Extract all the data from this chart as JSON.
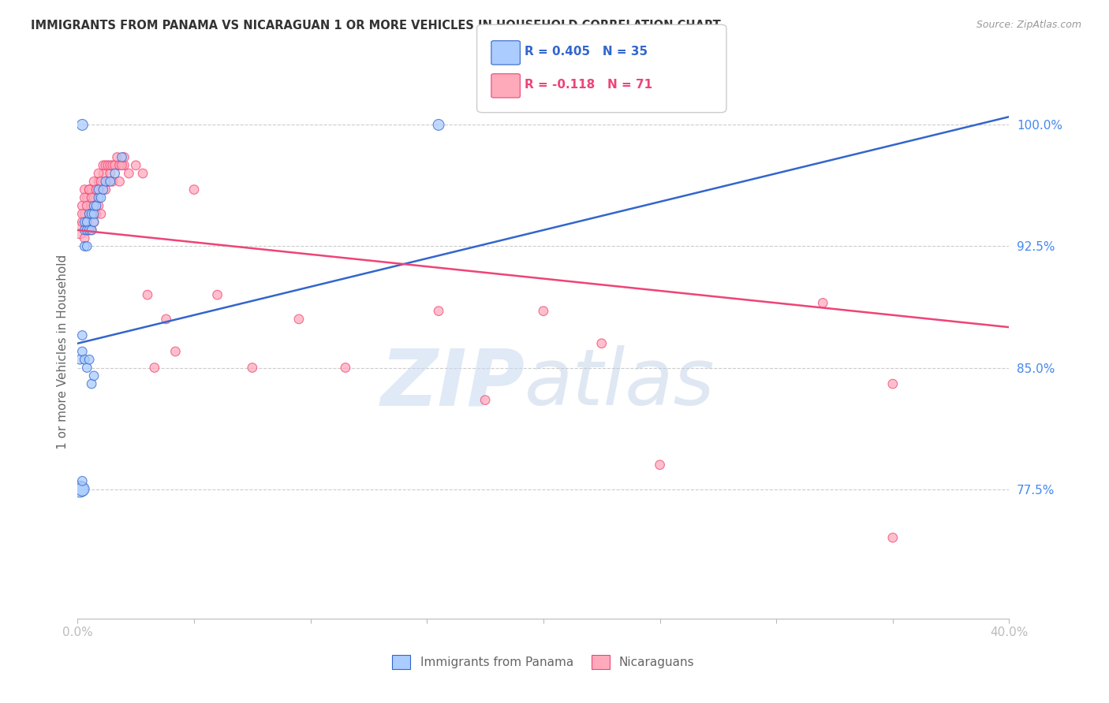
{
  "title": "IMMIGRANTS FROM PANAMA VS NICARAGUAN 1 OR MORE VEHICLES IN HOUSEHOLD CORRELATION CHART",
  "source": "Source: ZipAtlas.com",
  "ylabel": "1 or more Vehicles in Household",
  "xlim": [
    0.0,
    0.4
  ],
  "ylim": [
    0.695,
    1.025
  ],
  "y_ticks_right": [
    0.775,
    0.85,
    0.925,
    1.0
  ],
  "y_tick_labels_right": [
    "77.5%",
    "85.0%",
    "92.5%",
    "100.0%"
  ],
  "blue_color": "#aaccff",
  "pink_color": "#ffaabb",
  "trend_blue": "#3366cc",
  "trend_pink": "#ee4477",
  "watermark": "ZIPatlas",
  "watermark_blue": "#dce8f8",
  "watermark_gray": "#b0c8e8",
  "blue_label": "Immigrants from Panama",
  "pink_label": "Nicaraguans",
  "blue_r": "R = 0.405",
  "blue_n": "N = 35",
  "pink_r": "R = -0.118",
  "pink_n": "N = 71",
  "blue_trend_x": [
    0.0,
    0.4
  ],
  "blue_trend_y": [
    0.865,
    1.005
  ],
  "pink_trend_x": [
    0.0,
    0.4
  ],
  "pink_trend_y": [
    0.935,
    0.875
  ],
  "blue_scatter_x": [
    0.001,
    0.002,
    0.003,
    0.003,
    0.003,
    0.004,
    0.004,
    0.004,
    0.005,
    0.005,
    0.006,
    0.006,
    0.007,
    0.007,
    0.007,
    0.008,
    0.009,
    0.009,
    0.01,
    0.011,
    0.012,
    0.014,
    0.016,
    0.019,
    0.001,
    0.002,
    0.002,
    0.003,
    0.004,
    0.005,
    0.006,
    0.007,
    0.155,
    0.002,
    0.002
  ],
  "blue_scatter_y": [
    0.775,
    0.775,
    0.925,
    0.935,
    0.94,
    0.925,
    0.935,
    0.94,
    0.935,
    0.945,
    0.935,
    0.945,
    0.94,
    0.945,
    0.95,
    0.95,
    0.955,
    0.96,
    0.955,
    0.96,
    0.965,
    0.965,
    0.97,
    0.98,
    0.855,
    0.86,
    0.87,
    0.855,
    0.85,
    0.855,
    0.84,
    0.845,
    1.0,
    1.0,
    0.78
  ],
  "blue_scatter_size": [
    220,
    160,
    70,
    70,
    70,
    70,
    70,
    70,
    70,
    70,
    70,
    70,
    70,
    70,
    70,
    70,
    70,
    70,
    70,
    70,
    70,
    70,
    70,
    70,
    70,
    70,
    70,
    70,
    70,
    70,
    70,
    70,
    100,
    100,
    70
  ],
  "pink_scatter_x": [
    0.001,
    0.002,
    0.002,
    0.003,
    0.003,
    0.003,
    0.004,
    0.004,
    0.004,
    0.005,
    0.005,
    0.005,
    0.006,
    0.006,
    0.006,
    0.007,
    0.007,
    0.008,
    0.008,
    0.009,
    0.009,
    0.01,
    0.01,
    0.011,
    0.012,
    0.013,
    0.014,
    0.015,
    0.016,
    0.017,
    0.018,
    0.02,
    0.022,
    0.025,
    0.028,
    0.03,
    0.033,
    0.038,
    0.042,
    0.05,
    0.06,
    0.075,
    0.095,
    0.115,
    0.155,
    0.175,
    0.2,
    0.225,
    0.25,
    0.32,
    0.35,
    0.002,
    0.003,
    0.004,
    0.005,
    0.006,
    0.007,
    0.008,
    0.009,
    0.01,
    0.011,
    0.012,
    0.013,
    0.014,
    0.015,
    0.016,
    0.017,
    0.018,
    0.019,
    0.02,
    0.35
  ],
  "pink_scatter_y": [
    0.935,
    0.94,
    0.95,
    0.93,
    0.945,
    0.96,
    0.935,
    0.94,
    0.955,
    0.935,
    0.945,
    0.96,
    0.935,
    0.95,
    0.96,
    0.94,
    0.955,
    0.945,
    0.96,
    0.95,
    0.965,
    0.945,
    0.96,
    0.97,
    0.96,
    0.965,
    0.97,
    0.965,
    0.975,
    0.975,
    0.965,
    0.975,
    0.97,
    0.975,
    0.97,
    0.895,
    0.85,
    0.88,
    0.86,
    0.96,
    0.895,
    0.85,
    0.88,
    0.85,
    0.885,
    0.83,
    0.885,
    0.865,
    0.79,
    0.89,
    0.84,
    0.945,
    0.955,
    0.95,
    0.96,
    0.955,
    0.965,
    0.96,
    0.97,
    0.965,
    0.975,
    0.975,
    0.975,
    0.975,
    0.975,
    0.975,
    0.98,
    0.975,
    0.975,
    0.98,
    0.745
  ],
  "pink_scatter_size": [
    240,
    70,
    70,
    70,
    70,
    70,
    70,
    70,
    70,
    70,
    70,
    70,
    70,
    70,
    70,
    70,
    70,
    70,
    70,
    70,
    70,
    70,
    70,
    70,
    70,
    70,
    70,
    70,
    70,
    70,
    70,
    70,
    70,
    70,
    70,
    70,
    70,
    70,
    70,
    70,
    70,
    70,
    70,
    70,
    70,
    70,
    70,
    70,
    70,
    70,
    70,
    70,
    70,
    70,
    70,
    70,
    70,
    70,
    70,
    70,
    70,
    70,
    70,
    70,
    70,
    70,
    70,
    70,
    70,
    70,
    70
  ]
}
